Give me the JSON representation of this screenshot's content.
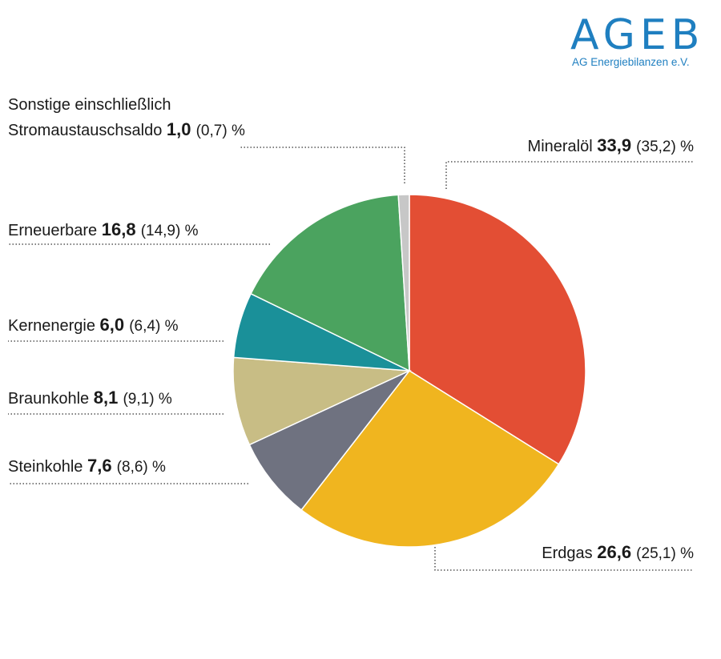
{
  "logo": {
    "word": "AGEB",
    "subtitle": "AG Energiebilanzen e.V."
  },
  "chart_data": {
    "type": "pie",
    "unit": "%",
    "slices": [
      {
        "name": "Mineralöl",
        "value": 33.9,
        "value_label": "33,9",
        "previous_label": "(35,2)",
        "color": "#e34e34"
      },
      {
        "name": "Erdgas",
        "value": 26.6,
        "value_label": "26,6",
        "previous_label": "(25,1)",
        "color": "#f0b51f"
      },
      {
        "name": "Steinkohle",
        "value": 7.6,
        "value_label": "7,6",
        "previous_label": "(8,6)",
        "color": "#6f7280"
      },
      {
        "name": "Braunkohle",
        "value": 8.1,
        "value_label": "8,1",
        "previous_label": "(9,1)",
        "color": "#c8bd85"
      },
      {
        "name": "Kernenergie",
        "value": 6.0,
        "value_label": "6,0",
        "previous_label": "(6,4)",
        "color": "#1a9099"
      },
      {
        "name": "Erneuerbare",
        "value": 16.8,
        "value_label": "16,8",
        "previous_label": "(14,9)",
        "color": "#4ba35f"
      },
      {
        "name": "Sonstige einschließlich Stromaustauschsaldo",
        "name_lines": [
          "Sonstige einschließlich",
          "Stromaustauschsaldo"
        ],
        "value": 1.0,
        "value_label": "1,0",
        "previous_label": "(0,7)",
        "color": "#c7c7c7"
      }
    ]
  }
}
